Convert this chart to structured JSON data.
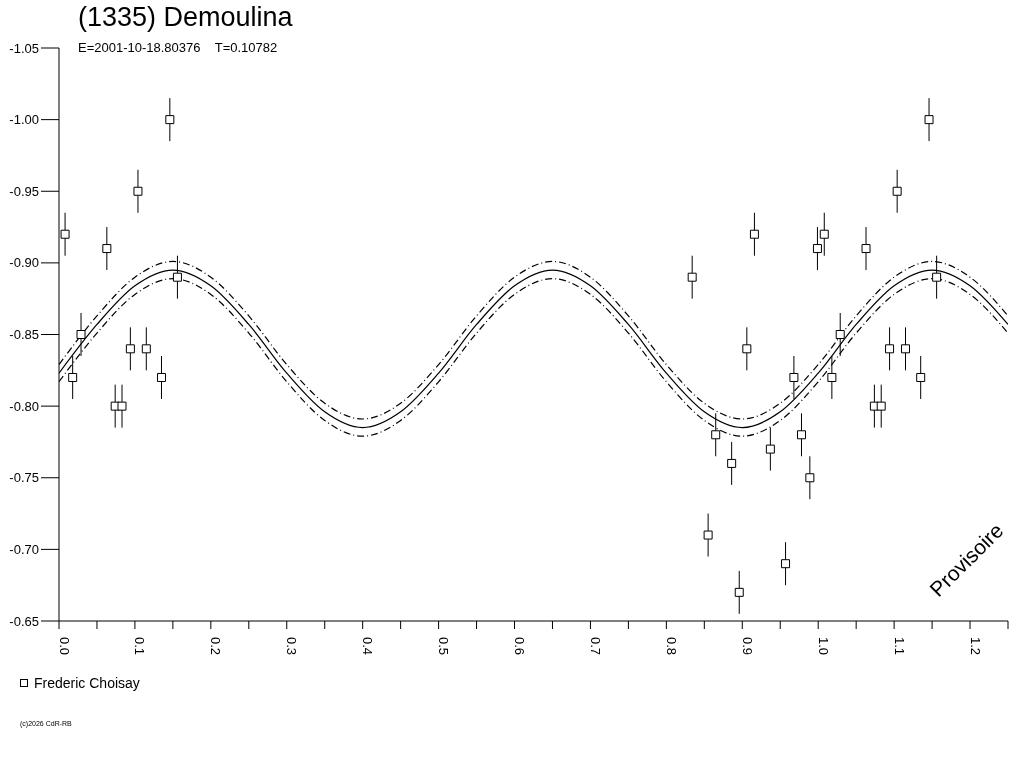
{
  "chart_data": {
    "type": "scatter",
    "title": "(1335) Demoulina",
    "subtitle": "E=2001-10-18.80376    T=0.10782",
    "annotations": [
      "Provisoire",
      "(c)2026 CdR-RB"
    ],
    "xlim": [
      0,
      1.25
    ],
    "xticks": [
      {
        "value": 0,
        "label": "0.0"
      },
      {
        "value": 0.05,
        "label": null
      },
      {
        "value": 0.1,
        "label": "0.1"
      },
      {
        "value": 0.15,
        "label": null
      },
      {
        "value": 0.2,
        "label": "0.2"
      },
      {
        "value": 0.25,
        "label": null
      },
      {
        "value": 0.3,
        "label": "0.3"
      },
      {
        "value": 0.35,
        "label": null
      },
      {
        "value": 0.4,
        "label": "0.4"
      },
      {
        "value": 0.45,
        "label": null
      },
      {
        "value": 0.5,
        "label": "0.5"
      },
      {
        "value": 0.55,
        "label": null
      },
      {
        "value": 0.6,
        "label": "0.6"
      },
      {
        "value": 0.65,
        "label": null
      },
      {
        "value": 0.7,
        "label": "0.7"
      },
      {
        "value": 0.75,
        "label": null
      },
      {
        "value": 0.8,
        "label": "0.8"
      },
      {
        "value": 0.85,
        "label": null
      },
      {
        "value": 0.9,
        "label": "0.9"
      },
      {
        "value": 0.95,
        "label": null
      },
      {
        "value": 1.0,
        "label": "1.0"
      },
      {
        "value": 1.05,
        "label": null
      },
      {
        "value": 1.1,
        "label": "1.1"
      },
      {
        "value": 1.15,
        "label": null
      },
      {
        "value": 1.2,
        "label": "1.2"
      },
      {
        "value": 1.25,
        "label": null
      }
    ],
    "ylim": [
      -0.65,
      -1.05
    ],
    "yticks": [
      -1.05,
      {
        "value": -1.0,
        "label": "-1.00"
      },
      -0.95,
      {
        "value": -0.9,
        "label": "-0.90"
      },
      -0.85,
      {
        "value": -0.8,
        "label": "-0.80"
      },
      -0.75,
      {
        "value": -0.7,
        "label": "-0.70"
      },
      -0.65
    ],
    "legend": "bottom left",
    "series": [
      {
        "name": "Frederic Choisay",
        "color": "#000000",
        "marker": "square",
        "x": [
          0.008,
          0.018,
          0.029,
          0.063,
          0.074,
          0.083,
          0.094,
          0.104,
          0.115,
          0.135,
          0.146,
          0.156,
          0.834,
          0.855,
          0.865,
          0.886,
          0.896,
          0.906,
          0.916,
          0.937,
          0.957,
          0.968,
          0.978,
          0.989,
          0.999,
          1.008,
          1.018,
          1.029,
          1.063,
          1.074,
          1.083,
          1.094,
          1.104,
          1.115,
          1.135,
          1.146,
          1.156
        ],
        "values": [
          -0.92,
          -0.82,
          -0.85,
          -0.91,
          -0.8,
          -0.8,
          -0.84,
          -0.95,
          -0.84,
          -0.82,
          -1.0,
          -0.89,
          -0.89,
          -0.71,
          -0.78,
          -0.76,
          -0.67,
          -0.84,
          -0.92,
          -0.77,
          -0.69,
          -0.82,
          -0.78,
          -0.75,
          -0.91,
          -0.92,
          -0.82,
          -0.85,
          -0.91,
          -0.8,
          -0.8,
          -0.84,
          -0.95,
          -0.84,
          -0.82,
          -1.0,
          -0.89
        ],
        "errors": [
          0.015,
          0.015,
          0.015,
          0.015,
          0.015,
          0.015,
          0.015,
          0.015,
          0.015,
          0.015,
          0.015,
          0.015,
          0.015,
          0.015,
          0.015,
          0.015,
          0.015,
          0.015,
          0.015,
          0.015,
          0.015,
          0.015,
          0.015,
          0.015,
          0.015,
          0.015,
          0.015,
          0.015,
          0.015,
          0.015,
          0.015,
          0.015,
          0.015,
          0.015,
          0.015,
          0.015,
          0.015
        ]
      },
      {
        "type": "line",
        "color": "#000000",
        "line_style": "solid",
        "marker": "none",
        "x": [
          0,
          0.05,
          0.1,
          0.15,
          0.2,
          0.25,
          0.3,
          0.35,
          0.4,
          0.45,
          0.5,
          0.55,
          0.6,
          0.65,
          0.7,
          0.75,
          0.8,
          0.85,
          0.9,
          0.95,
          1.0,
          1.05,
          1.1,
          1.15,
          1.2,
          1.25
        ],
        "values": [
          -0.823,
          -0.857,
          -0.884,
          -0.895,
          -0.884,
          -0.857,
          -0.823,
          -0.796,
          -0.785,
          -0.796,
          -0.823,
          -0.857,
          -0.884,
          -0.895,
          -0.884,
          -0.857,
          -0.823,
          -0.796,
          -0.785,
          -0.796,
          -0.823,
          -0.857,
          -0.884,
          -0.895,
          -0.884,
          -0.857
        ]
      },
      {
        "type": "line",
        "color": "#000000",
        "line_style": "dashed",
        "marker": "none",
        "x": [
          0,
          0.05,
          0.1,
          0.15,
          0.2,
          0.25,
          0.3,
          0.35,
          0.4,
          0.45,
          0.5,
          0.55,
          0.6,
          0.65,
          0.7,
          0.75,
          0.8,
          0.85,
          0.9,
          0.95,
          1.0,
          1.05,
          1.1,
          1.15,
          1.2,
          1.25
        ],
        "values": [
          -0.829,
          -0.863,
          -0.89,
          -0.901,
          -0.89,
          -0.863,
          -0.829,
          -0.802,
          -0.791,
          -0.802,
          -0.829,
          -0.863,
          -0.89,
          -0.901,
          -0.89,
          -0.863,
          -0.829,
          -0.802,
          -0.791,
          -0.802,
          -0.829,
          -0.863,
          -0.89,
          -0.901,
          -0.89,
          -0.863
        ]
      },
      {
        "type": "line",
        "color": "#000000",
        "line_style": "dashed",
        "marker": "none",
        "x": [
          0,
          0.05,
          0.1,
          0.15,
          0.2,
          0.25,
          0.3,
          0.35,
          0.4,
          0.45,
          0.5,
          0.55,
          0.6,
          0.65,
          0.7,
          0.75,
          0.8,
          0.85,
          0.9,
          0.95,
          1.0,
          1.05,
          1.1,
          1.15,
          1.2,
          1.25
        ],
        "values": [
          -0.817,
          -0.851,
          -0.878,
          -0.889,
          -0.878,
          -0.851,
          -0.817,
          -0.79,
          -0.779,
          -0.79,
          -0.817,
          -0.851,
          -0.878,
          -0.889,
          -0.878,
          -0.851,
          -0.817,
          -0.79,
          -0.779,
          -0.79,
          -0.817,
          -0.851,
          -0.878,
          -0.889,
          -0.878,
          -0.851
        ]
      }
    ]
  }
}
